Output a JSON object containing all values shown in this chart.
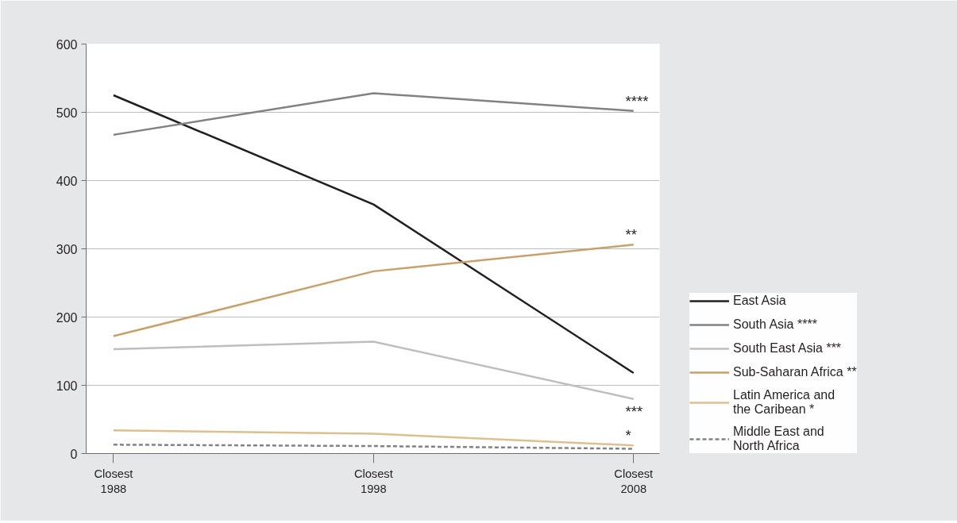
{
  "chart_data": {
    "type": "line",
    "categories": [
      "Closest\n1988",
      "Closest\n1998",
      "Closest\n2008"
    ],
    "ylim": [
      0,
      600
    ],
    "yticks": [
      0,
      100,
      200,
      300,
      400,
      500,
      600
    ],
    "grid": "y",
    "legend": "right",
    "marker": "none",
    "series": [
      {
        "name": "East Asia",
        "color": "#231f20",
        "values": [
          525,
          365,
          118
        ]
      },
      {
        "name": "South Asia ****",
        "color": "#808285",
        "values": [
          467,
          528,
          502
        ]
      },
      {
        "name": "South East Asia ***",
        "color": "#bcbec0",
        "values": [
          153,
          164,
          80
        ]
      },
      {
        "name": "Sub-Saharan Africa **",
        "color": "#c9a06a",
        "values": [
          172,
          267,
          306
        ]
      },
      {
        "name": "Latin America and\nthe Caribean *",
        "color": "#dcc08f",
        "values": [
          34,
          29,
          12
        ]
      },
      {
        "name": "Middle East and\nNorth Africa",
        "color": "#808285",
        "values": [
          13,
          11,
          7
        ],
        "line_style": "dashed"
      }
    ],
    "annotations": [
      {
        "text": "****",
        "x": "Closest\n2008",
        "y": 502
      },
      {
        "text": "**",
        "x": "Closest\n2008",
        "y": 306
      },
      {
        "text": "***",
        "x": "Closest\n2008",
        "y": 80
      },
      {
        "text": "*",
        "x": "Closest\n2008",
        "y": 12
      }
    ]
  }
}
